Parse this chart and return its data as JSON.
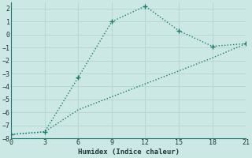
{
  "xlabel": "Humidex (Indice chaleur)",
  "bg_color": "#cce8e4",
  "grid_color": "#b8d8d4",
  "line_color": "#1a7a6e",
  "line1_x": [
    0,
    3,
    6,
    9,
    12,
    15,
    18,
    21
  ],
  "line1_y": [
    -7.7,
    -7.5,
    -3.3,
    1.0,
    2.2,
    0.3,
    -0.9,
    -0.7
  ],
  "line2_x": [
    0,
    3,
    6,
    9,
    12,
    15,
    18,
    21
  ],
  "line2_y": [
    -7.7,
    -7.5,
    -5.8,
    -4.8,
    -3.8,
    -2.8,
    -1.8,
    -0.7
  ],
  "xlim": [
    0,
    21
  ],
  "ylim": [
    -8,
    2.5
  ],
  "xticks": [
    0,
    3,
    6,
    9,
    12,
    15,
    18,
    21
  ],
  "yticks": [
    -8,
    -7,
    -6,
    -5,
    -4,
    -3,
    -2,
    -1,
    0,
    1,
    2
  ]
}
